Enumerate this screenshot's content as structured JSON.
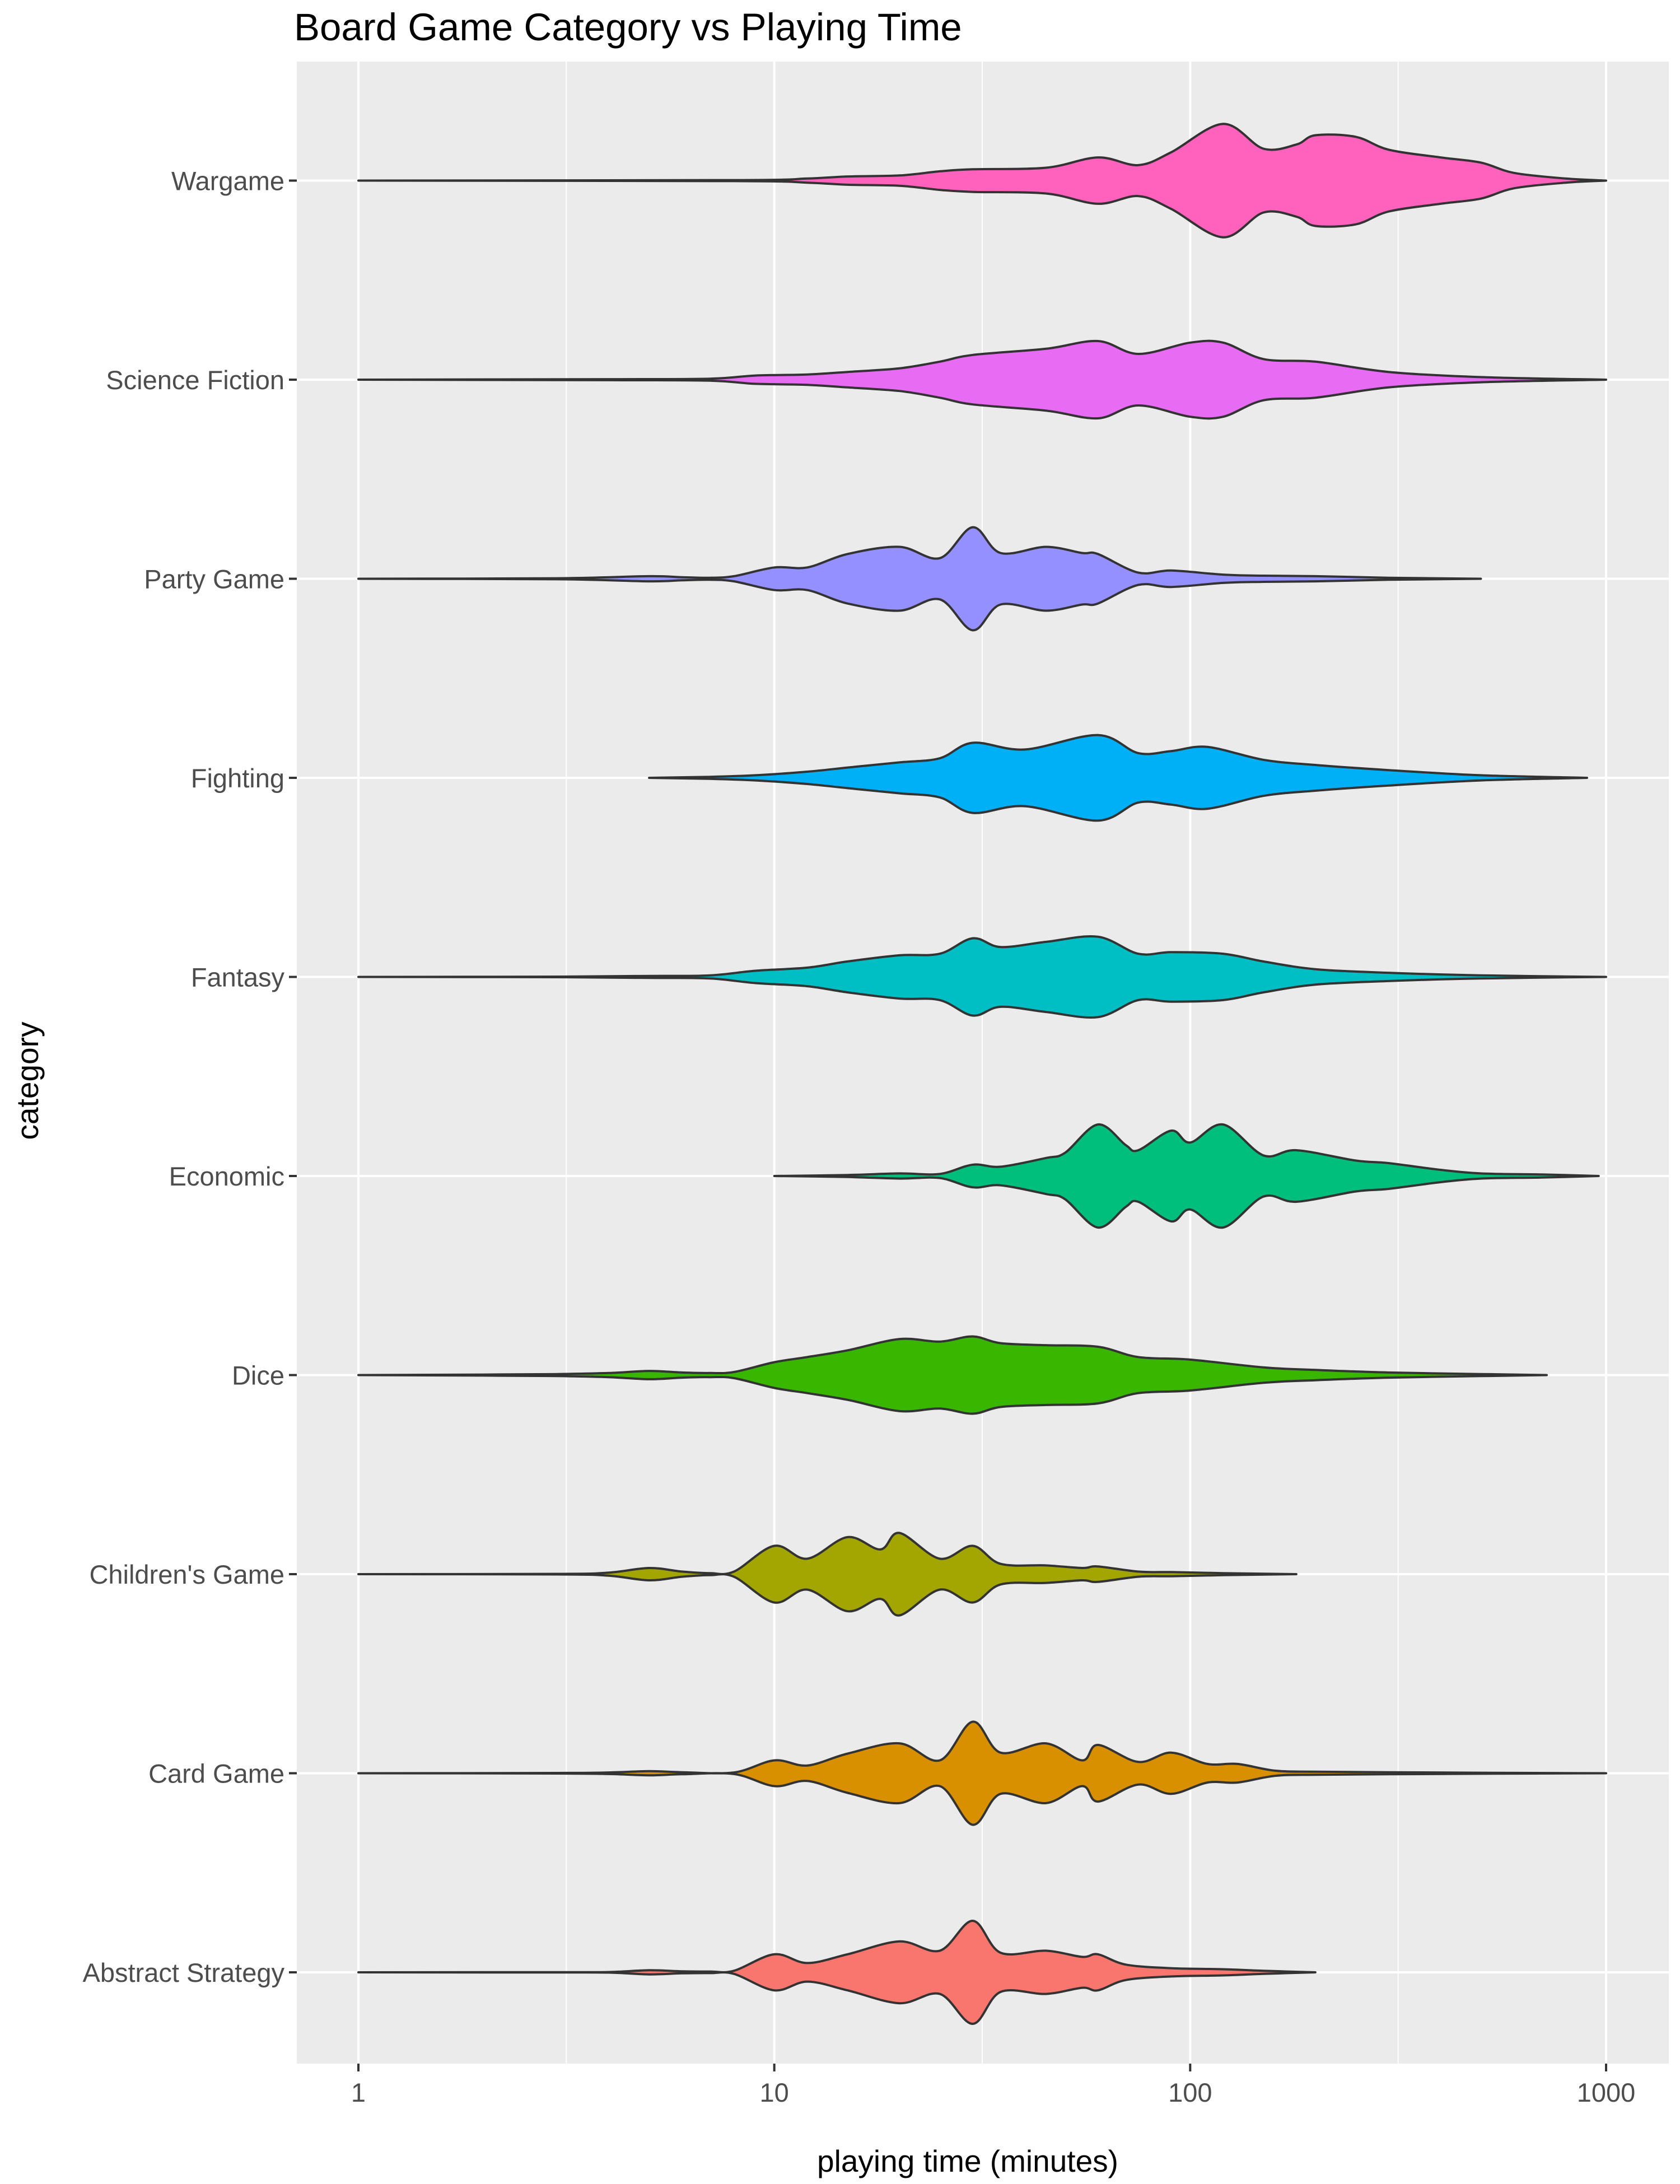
{
  "chart_data": {
    "type": "violin",
    "title": "Board Game Category vs Playing Time",
    "xlabel": "playing time (minutes)",
    "ylabel": "category",
    "x_scale": "log10",
    "xlim": [
      1,
      1000
    ],
    "x_ticks": [
      {
        "value": 1,
        "label": "1"
      },
      {
        "value": 10,
        "label": "10"
      },
      {
        "value": 100,
        "label": "100"
      },
      {
        "value": 1000,
        "label": "1000"
      }
    ],
    "grid": true,
    "legend": "none",
    "categories": [
      "Abstract Strategy",
      "Card Game",
      "Children's Game",
      "Dice",
      "Economic",
      "Fantasy",
      "Fighting",
      "Party Game",
      "Science Fiction",
      "Wargame"
    ],
    "series": [
      {
        "category": "Abstract Strategy",
        "color": "#F8766D",
        "min": 1,
        "max": 200,
        "density": [
          [
            1,
            0
          ],
          [
            2,
            0.3
          ],
          [
            3,
            0.3
          ],
          [
            4,
            0.5
          ],
          [
            5,
            4
          ],
          [
            6,
            2
          ],
          [
            7,
            1.5
          ],
          [
            8,
            3
          ],
          [
            10,
            35
          ],
          [
            12,
            18
          ],
          [
            15,
            35
          ],
          [
            20,
            60
          ],
          [
            25,
            42
          ],
          [
            30,
            100
          ],
          [
            35,
            38
          ],
          [
            45,
            42
          ],
          [
            55,
            30
          ],
          [
            60,
            35
          ],
          [
            70,
            15
          ],
          [
            90,
            8
          ],
          [
            120,
            6
          ],
          [
            150,
            3
          ],
          [
            200,
            0
          ]
        ]
      },
      {
        "category": "Card Game",
        "color": "#D89000",
        "min": 1,
        "max": 1000,
        "density": [
          [
            1,
            0
          ],
          [
            3,
            0.5
          ],
          [
            4,
            1.5
          ],
          [
            5,
            4
          ],
          [
            6,
            2
          ],
          [
            8,
            1.5
          ],
          [
            10,
            25
          ],
          [
            12,
            15
          ],
          [
            15,
            38
          ],
          [
            20,
            58
          ],
          [
            25,
            25
          ],
          [
            30,
            100
          ],
          [
            35,
            40
          ],
          [
            45,
            58
          ],
          [
            55,
            25
          ],
          [
            60,
            55
          ],
          [
            75,
            22
          ],
          [
            90,
            40
          ],
          [
            110,
            18
          ],
          [
            130,
            18
          ],
          [
            160,
            5
          ],
          [
            200,
            3
          ],
          [
            300,
            2
          ],
          [
            500,
            1
          ],
          [
            1000,
            0
          ]
        ]
      },
      {
        "category": "Children's Game",
        "color": "#A3A500",
        "min": 1,
        "max": 180,
        "density": [
          [
            1,
            0
          ],
          [
            3,
            0.5
          ],
          [
            4,
            3
          ],
          [
            5,
            12
          ],
          [
            6,
            5
          ],
          [
            7,
            2
          ],
          [
            8,
            5
          ],
          [
            10,
            55
          ],
          [
            12,
            30
          ],
          [
            15,
            72
          ],
          [
            18,
            48
          ],
          [
            20,
            80
          ],
          [
            25,
            30
          ],
          [
            30,
            55
          ],
          [
            35,
            20
          ],
          [
            45,
            17
          ],
          [
            55,
            12
          ],
          [
            60,
            15
          ],
          [
            75,
            5
          ],
          [
            90,
            4
          ],
          [
            120,
            2
          ],
          [
            180,
            0
          ]
        ]
      },
      {
        "category": "Dice",
        "color": "#39B600",
        "min": 1,
        "max": 720,
        "density": [
          [
            1,
            0
          ],
          [
            2,
            1
          ],
          [
            3,
            2
          ],
          [
            4,
            4
          ],
          [
            5,
            8
          ],
          [
            6,
            5
          ],
          [
            7,
            4
          ],
          [
            8,
            6
          ],
          [
            10,
            25
          ],
          [
            12,
            35
          ],
          [
            15,
            48
          ],
          [
            20,
            70
          ],
          [
            25,
            65
          ],
          [
            30,
            75
          ],
          [
            35,
            62
          ],
          [
            45,
            58
          ],
          [
            60,
            55
          ],
          [
            75,
            35
          ],
          [
            100,
            30
          ],
          [
            150,
            15
          ],
          [
            200,
            10
          ],
          [
            300,
            5
          ],
          [
            500,
            2
          ],
          [
            720,
            0
          ]
        ]
      },
      {
        "category": "Economic",
        "color": "#00BF7D",
        "min": 10,
        "max": 960,
        "density": [
          [
            10,
            0
          ],
          [
            15,
            2
          ],
          [
            20,
            5
          ],
          [
            25,
            4
          ],
          [
            30,
            22
          ],
          [
            35,
            18
          ],
          [
            45,
            35
          ],
          [
            50,
            45
          ],
          [
            60,
            100
          ],
          [
            70,
            60
          ],
          [
            75,
            50
          ],
          [
            90,
            88
          ],
          [
            100,
            65
          ],
          [
            120,
            100
          ],
          [
            150,
            40
          ],
          [
            180,
            50
          ],
          [
            250,
            30
          ],
          [
            300,
            25
          ],
          [
            400,
            12
          ],
          [
            500,
            5
          ],
          [
            700,
            3
          ],
          [
            960,
            0
          ]
        ]
      },
      {
        "category": "Fantasy",
        "color": "#00BFC4",
        "min": 1,
        "max": 1000,
        "density": [
          [
            1,
            0
          ],
          [
            3,
            0.5
          ],
          [
            5,
            2
          ],
          [
            7,
            3
          ],
          [
            9,
            12
          ],
          [
            12,
            18
          ],
          [
            15,
            30
          ],
          [
            20,
            42
          ],
          [
            25,
            45
          ],
          [
            30,
            75
          ],
          [
            35,
            58
          ],
          [
            45,
            68
          ],
          [
            60,
            78
          ],
          [
            75,
            45
          ],
          [
            90,
            48
          ],
          [
            120,
            45
          ],
          [
            150,
            30
          ],
          [
            200,
            15
          ],
          [
            300,
            8
          ],
          [
            500,
            3
          ],
          [
            1000,
            0
          ]
        ]
      },
      {
        "category": "Fighting",
        "color": "#00B0F6",
        "min": 5,
        "max": 900,
        "density": [
          [
            5,
            0
          ],
          [
            7,
            2
          ],
          [
            9,
            5
          ],
          [
            12,
            12
          ],
          [
            15,
            20
          ],
          [
            20,
            30
          ],
          [
            25,
            38
          ],
          [
            30,
            68
          ],
          [
            40,
            55
          ],
          [
            60,
            83
          ],
          [
            75,
            48
          ],
          [
            90,
            52
          ],
          [
            110,
            60
          ],
          [
            150,
            35
          ],
          [
            200,
            25
          ],
          [
            300,
            15
          ],
          [
            500,
            5
          ],
          [
            900,
            0
          ]
        ]
      },
      {
        "category": "Party Game",
        "color": "#9590FF",
        "min": 1,
        "max": 500,
        "density": [
          [
            1,
            0
          ],
          [
            3,
            1
          ],
          [
            5,
            5
          ],
          [
            6,
            3
          ],
          [
            7,
            2
          ],
          [
            8,
            5
          ],
          [
            10,
            22
          ],
          [
            12,
            22
          ],
          [
            15,
            48
          ],
          [
            20,
            62
          ],
          [
            25,
            40
          ],
          [
            30,
            100
          ],
          [
            35,
            50
          ],
          [
            45,
            62
          ],
          [
            55,
            50
          ],
          [
            60,
            48
          ],
          [
            75,
            12
          ],
          [
            90,
            16
          ],
          [
            120,
            8
          ],
          [
            150,
            6
          ],
          [
            200,
            5
          ],
          [
            300,
            2
          ],
          [
            500,
            0
          ]
        ]
      },
      {
        "category": "Science Fiction",
        "color": "#E76BF3",
        "min": 1,
        "max": 1000,
        "density": [
          [
            1,
            0
          ],
          [
            4,
            1
          ],
          [
            7,
            2
          ],
          [
            9,
            8
          ],
          [
            12,
            10
          ],
          [
            15,
            15
          ],
          [
            20,
            22
          ],
          [
            25,
            35
          ],
          [
            30,
            48
          ],
          [
            45,
            60
          ],
          [
            60,
            75
          ],
          [
            75,
            50
          ],
          [
            100,
            72
          ],
          [
            120,
            72
          ],
          [
            150,
            40
          ],
          [
            200,
            35
          ],
          [
            300,
            15
          ],
          [
            500,
            5
          ],
          [
            1000,
            0
          ]
        ]
      },
      {
        "category": "Wargame",
        "color": "#FF62BC",
        "min": 1,
        "max": 1000,
        "density": [
          [
            1,
            0
          ],
          [
            8,
            1
          ],
          [
            12,
            4
          ],
          [
            15,
            8
          ],
          [
            20,
            10
          ],
          [
            25,
            18
          ],
          [
            30,
            22
          ],
          [
            45,
            25
          ],
          [
            60,
            45
          ],
          [
            75,
            30
          ],
          [
            90,
            55
          ],
          [
            120,
            110
          ],
          [
            150,
            62
          ],
          [
            180,
            70
          ],
          [
            200,
            88
          ],
          [
            250,
            85
          ],
          [
            300,
            60
          ],
          [
            400,
            45
          ],
          [
            500,
            35
          ],
          [
            600,
            15
          ],
          [
            800,
            4
          ],
          [
            1000,
            0
          ]
        ]
      }
    ]
  }
}
